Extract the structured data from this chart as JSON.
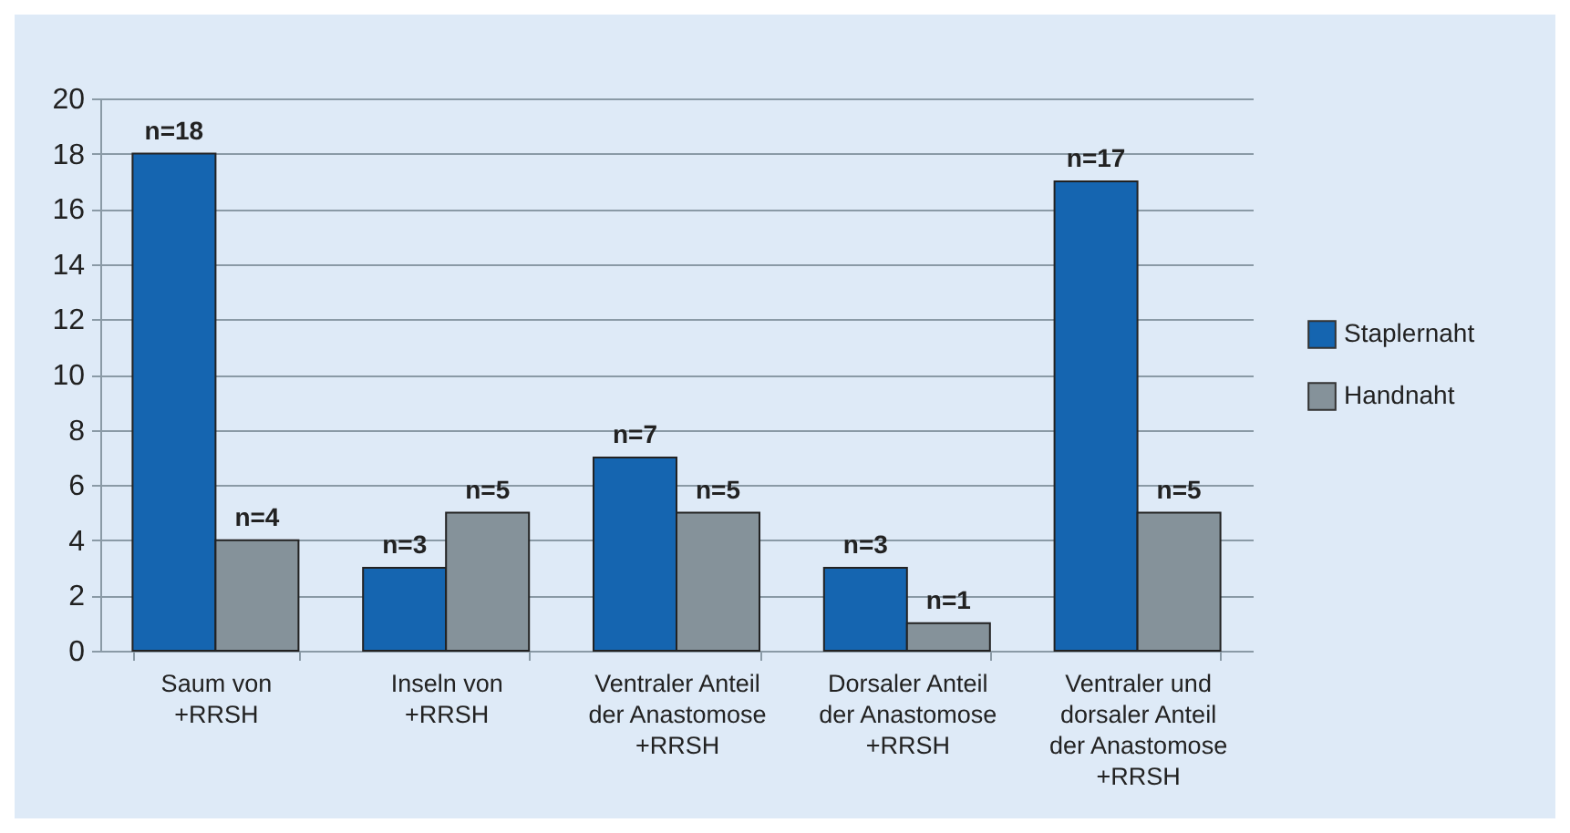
{
  "chart_data": {
    "type": "bar",
    "categories": [
      "Saum von\n+RRSH",
      "Inseln von\n+RRSH",
      "Ventraler Anteil\nder Anastomose\n+RRSH",
      "Dorsaler Anteil\nder Anastomose\n+RRSH",
      "Ventraler und\ndorsaler Anteil\nder Anastomose\n+RRSH"
    ],
    "series": [
      {
        "name": "Staplernaht",
        "color": "#1565b0",
        "values": [
          18,
          3,
          7,
          3,
          17
        ],
        "value_labels": [
          "n=18",
          "n=3",
          "n=7",
          "n=3",
          "n=17"
        ]
      },
      {
        "name": "Handnaht",
        "color": "#85929a",
        "values": [
          4,
          5,
          5,
          1,
          5
        ],
        "value_labels": [
          "n=4",
          "n=5",
          "n=5",
          "n=1",
          "n=5"
        ]
      }
    ],
    "ylim": [
      0,
      20
    ],
    "yticks": [
      0,
      2,
      4,
      6,
      8,
      10,
      12,
      14,
      16,
      18,
      20
    ],
    "grid": "y",
    "legend": "right"
  }
}
